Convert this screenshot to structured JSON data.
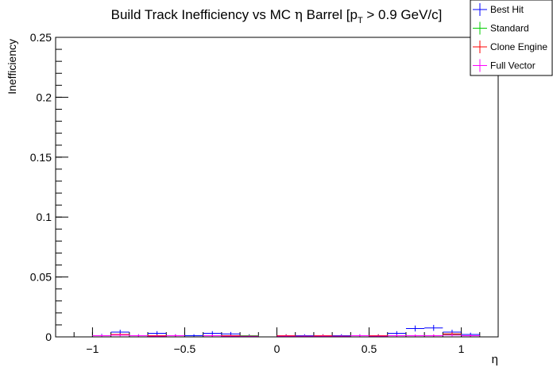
{
  "chart_data": {
    "type": "scatter",
    "title_main": "Build Track Inefficiency vs MC ",
    "title_eta": "η",
    "title_rest1": " Barrel [p",
    "title_sub": "T",
    "title_rest2": " > 0.9 GeV/c]",
    "xlabel": "η",
    "ylabel": "Inefficiency",
    "xlim": [
      -1.2,
      1.2
    ],
    "ylim": [
      0,
      0.25
    ],
    "x_ticks": [
      {
        "v": -1,
        "label": "−1"
      },
      {
        "v": -0.5,
        "label": "−0.5"
      },
      {
        "v": 0,
        "label": "0"
      },
      {
        "v": 0.5,
        "label": "0.5"
      },
      {
        "v": 1,
        "label": "1"
      }
    ],
    "y_ticks": [
      {
        "v": 0,
        "label": "0"
      },
      {
        "v": 0.05,
        "label": "0.05"
      },
      {
        "v": 0.1,
        "label": "0.1"
      },
      {
        "v": 0.15,
        "label": "0.15"
      },
      {
        "v": 0.2,
        "label": "0.2"
      },
      {
        "v": 0.25,
        "label": "0.25"
      }
    ],
    "bin_edges": [
      -1.0,
      -0.9,
      -0.8,
      -0.7,
      -0.6,
      -0.5,
      -0.4,
      -0.3,
      -0.2,
      -0.1,
      0.0,
      0.1,
      0.2,
      0.3,
      0.4,
      0.5,
      0.6,
      0.7,
      0.8,
      0.9,
      1.0
    ],
    "legend_position": "top-right",
    "series": [
      {
        "name": "Best Hit",
        "color": "#0000ff",
        "values": [
          0.001,
          0.004,
          0.001,
          0.003,
          0.001,
          0.001,
          0.003,
          0.0025,
          0.001,
          0.0,
          0.001,
          0.001,
          0.001,
          0.001,
          0.001,
          0.001,
          0.003,
          0.007,
          0.0075,
          0.004,
          0.002
        ],
        "errors": [
          0.0015,
          0.002,
          0.0012,
          0.0018,
          0.0012,
          0.0012,
          0.0018,
          0.0016,
          0.0012,
          0.0,
          0.0012,
          0.0012,
          0.0012,
          0.0012,
          0.0012,
          0.0012,
          0.0018,
          0.0025,
          0.0025,
          0.002,
          0.0015
        ]
      },
      {
        "name": "Standard",
        "color": "#00cc00",
        "values": [
          0.001,
          0.002,
          0.001,
          0.001,
          0.001,
          0.0,
          0.001,
          0.001,
          0.001,
          0.0,
          0.001,
          0.0005,
          0.001,
          0.0005,
          0.001,
          0.001,
          0.001,
          0.001,
          0.001,
          0.002,
          0.001
        ],
        "errors": [
          0.001,
          0.0012,
          0.001,
          0.001,
          0.001,
          0.0,
          0.001,
          0.001,
          0.001,
          0.0,
          0.001,
          0.0008,
          0.001,
          0.0008,
          0.001,
          0.001,
          0.001,
          0.001,
          0.001,
          0.0012,
          0.001
        ]
      },
      {
        "name": "Clone Engine",
        "color": "#ff0000",
        "values": [
          0.001,
          0.002,
          0.001,
          0.001,
          0.001,
          0.0,
          0.001,
          0.001,
          0.0005,
          0.0,
          0.001,
          0.0005,
          0.001,
          0.0005,
          0.001,
          0.001,
          0.001,
          0.001,
          0.001,
          0.0025,
          0.001
        ],
        "errors": [
          0.001,
          0.0012,
          0.001,
          0.001,
          0.001,
          0.0,
          0.001,
          0.001,
          0.0008,
          0.0,
          0.001,
          0.0008,
          0.001,
          0.0008,
          0.001,
          0.001,
          0.001,
          0.001,
          0.001,
          0.0014,
          0.001
        ]
      },
      {
        "name": "Full Vector",
        "color": "#ff00ff",
        "values": [
          0.001,
          0.0015,
          0.001,
          0.0005,
          0.001,
          0.0,
          0.001,
          0.0005,
          0.0005,
          0.0,
          0.0005,
          0.0005,
          0.0005,
          0.0005,
          0.001,
          0.0005,
          0.001,
          0.001,
          0.001,
          0.0015,
          0.001
        ],
        "errors": [
          0.001,
          0.001,
          0.001,
          0.0008,
          0.001,
          0.0,
          0.001,
          0.0008,
          0.0008,
          0.0,
          0.0008,
          0.0008,
          0.0008,
          0.0008,
          0.001,
          0.0008,
          0.001,
          0.001,
          0.001,
          0.001,
          0.001
        ]
      }
    ]
  }
}
